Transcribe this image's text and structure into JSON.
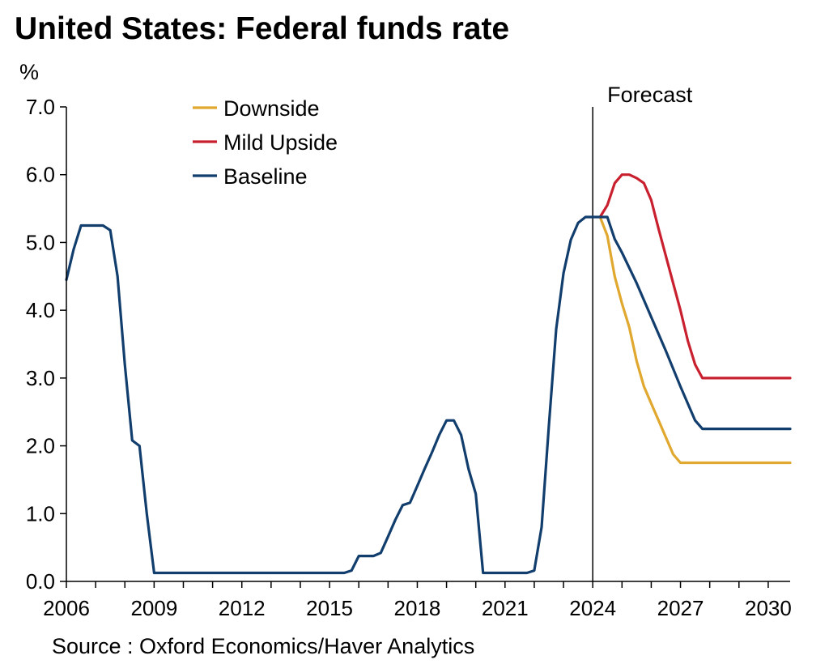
{
  "title": "United States: Federal funds rate",
  "source": "Source : Oxford Economics/Haver Analytics",
  "chart_data": {
    "type": "line",
    "title": "United States: Federal funds rate",
    "ylabel": "%",
    "xlabel": "",
    "ylim": [
      0,
      7
    ],
    "xlim": [
      2006,
      2030.75
    ],
    "y_ticks": [
      "0.0",
      "1.0",
      "2.0",
      "3.0",
      "4.0",
      "5.0",
      "6.0",
      "7.0"
    ],
    "x_ticks": [
      "2006",
      "2009",
      "2012",
      "2015",
      "2018",
      "2021",
      "2024",
      "2027",
      "2030"
    ],
    "grid": false,
    "legend_position": "top-left",
    "annotation": {
      "label": "Forecast",
      "x": 2024
    },
    "series": [
      {
        "name": "Downside",
        "color": "#E0A82E",
        "x": [
          2024.25,
          2024.5,
          2024.75,
          2025.0,
          2025.25,
          2025.5,
          2025.75,
          2026.0,
          2026.25,
          2026.5,
          2026.75,
          2027.0,
          2027.5,
          2028.0,
          2029.0,
          2030.0,
          2030.75
        ],
        "y": [
          5.375,
          5.1,
          4.5,
          4.1,
          3.75,
          3.25,
          2.875,
          2.625,
          2.375,
          2.125,
          1.875,
          1.75,
          1.75,
          1.75,
          1.75,
          1.75,
          1.75
        ]
      },
      {
        "name": "Mild Upside",
        "color": "#C8202E",
        "x": [
          2024.25,
          2024.5,
          2024.75,
          2025.0,
          2025.25,
          2025.5,
          2025.75,
          2026.0,
          2026.25,
          2026.5,
          2026.75,
          2027.0,
          2027.25,
          2027.5,
          2027.75,
          2028.0,
          2029.0,
          2030.0,
          2030.75
        ],
        "y": [
          5.375,
          5.55,
          5.875,
          6.0,
          6.0,
          5.95,
          5.875,
          5.625,
          5.2,
          4.8,
          4.4,
          4.0,
          3.55,
          3.2,
          3.0,
          3.0,
          3.0,
          3.0,
          3.0
        ]
      },
      {
        "name": "Baseline",
        "color": "#123E6E",
        "x": [
          2006.0,
          2006.25,
          2006.5,
          2006.75,
          2007.0,
          2007.25,
          2007.5,
          2007.75,
          2008.0,
          2008.25,
          2008.5,
          2008.75,
          2009.0,
          2010.0,
          2011.0,
          2012.0,
          2013.0,
          2014.0,
          2015.0,
          2015.5,
          2015.75,
          2016.0,
          2016.25,
          2016.5,
          2016.75,
          2017.0,
          2017.25,
          2017.5,
          2017.75,
          2018.0,
          2018.25,
          2018.5,
          2018.75,
          2019.0,
          2019.25,
          2019.5,
          2019.75,
          2020.0,
          2020.25,
          2020.5,
          2021.0,
          2021.5,
          2021.75,
          2022.0,
          2022.25,
          2022.5,
          2022.75,
          2023.0,
          2023.25,
          2023.5,
          2023.75,
          2024.0,
          2024.25,
          2024.5,
          2024.75,
          2025.0,
          2025.5,
          2026.0,
          2026.5,
          2027.0,
          2027.5,
          2027.75,
          2028.0,
          2029.0,
          2030.0,
          2030.75
        ],
        "y": [
          4.45,
          4.9,
          5.25,
          5.25,
          5.25,
          5.25,
          5.18,
          4.5,
          3.2,
          2.08,
          2.0,
          1.0,
          0.125,
          0.125,
          0.125,
          0.125,
          0.125,
          0.125,
          0.125,
          0.125,
          0.16,
          0.375,
          0.375,
          0.375,
          0.42,
          0.66,
          0.91,
          1.125,
          1.16,
          1.41,
          1.66,
          1.9,
          2.16,
          2.375,
          2.375,
          2.16,
          1.66,
          1.29,
          0.125,
          0.125,
          0.125,
          0.125,
          0.125,
          0.16,
          0.8,
          2.3,
          3.72,
          4.55,
          5.04,
          5.29,
          5.375,
          5.375,
          5.375,
          5.375,
          5.05,
          4.85,
          4.4,
          3.9,
          3.4,
          2.875,
          2.375,
          2.25,
          2.25,
          2.25,
          2.25,
          2.25
        ]
      }
    ]
  }
}
